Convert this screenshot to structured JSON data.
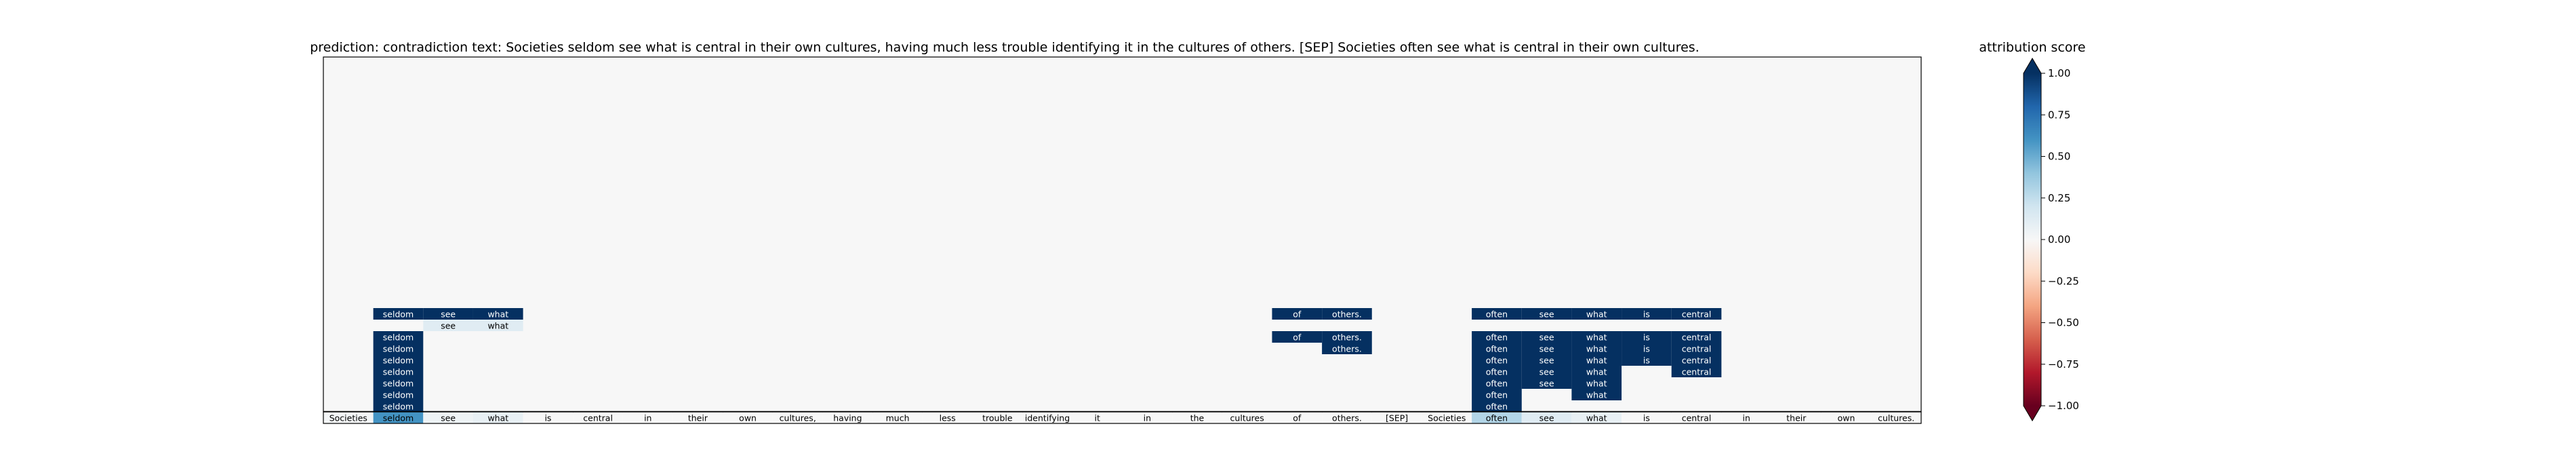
{
  "chart_data": {
    "type": "heatmap",
    "title": "prediction:  contradiction     text:  Societies seldom see what is central in their own cultures, having much less trouble identifying it in the cultures of others. [SEP] Societies often see what is central in their own cultures.",
    "tokens": [
      "Societies",
      "seldom",
      "see",
      "what",
      "is",
      "central",
      "in",
      "their",
      "own",
      "cultures,",
      "having",
      "much",
      "less",
      "trouble",
      "identifying",
      "it",
      "in",
      "the",
      "cultures",
      "of",
      "others.",
      "[SEP]",
      "Societies",
      "often",
      "see",
      "what",
      "is",
      "central",
      "in",
      "their",
      "own",
      "cultures."
    ],
    "token_scores": [
      0.02,
      0.6,
      0.05,
      0.08,
      0.0,
      0.0,
      0.0,
      0.0,
      0.0,
      0.0,
      0.0,
      0.0,
      0.0,
      0.0,
      0.0,
      0.0,
      0.0,
      0.0,
      0.0,
      0.0,
      0.0,
      0.0,
      0.0,
      0.3,
      0.12,
      0.08,
      0.0,
      0.0,
      0.0,
      0.0,
      0.0,
      0.0
    ],
    "rows": [
      {
        "row": 8,
        "cells": [
          [
            1,
            "seldom",
            1.0
          ],
          [
            2,
            "see",
            1.0
          ],
          [
            3,
            "what",
            1.0
          ],
          [
            19,
            "of",
            1.0
          ],
          [
            20,
            "others.",
            1.0
          ],
          [
            23,
            "often",
            1.0
          ],
          [
            24,
            "see",
            1.0
          ],
          [
            25,
            "what",
            1.0
          ],
          [
            26,
            "is",
            1.0
          ],
          [
            27,
            "central",
            1.0
          ]
        ]
      },
      {
        "row": 7,
        "cells": [
          [
            2,
            "see",
            0.12
          ],
          [
            3,
            "what",
            0.12
          ]
        ]
      },
      {
        "row": 6,
        "cells": [
          [
            1,
            "seldom",
            1.0
          ],
          [
            19,
            "of",
            1.0
          ],
          [
            20,
            "others.",
            1.0
          ],
          [
            23,
            "often",
            1.0
          ],
          [
            24,
            "see",
            1.0
          ],
          [
            25,
            "what",
            1.0
          ],
          [
            26,
            "is",
            1.0
          ],
          [
            27,
            "central",
            1.0
          ]
        ]
      },
      {
        "row": 5,
        "cells": [
          [
            1,
            "seldom",
            1.0
          ],
          [
            20,
            "others.",
            1.0
          ],
          [
            23,
            "often",
            1.0
          ],
          [
            24,
            "see",
            1.0
          ],
          [
            25,
            "what",
            1.0
          ],
          [
            26,
            "is",
            1.0
          ],
          [
            27,
            "central",
            1.0
          ]
        ]
      },
      {
        "row": 4,
        "cells": [
          [
            1,
            "seldom",
            1.0
          ],
          [
            23,
            "often",
            1.0
          ],
          [
            24,
            "see",
            1.0
          ],
          [
            25,
            "what",
            1.0
          ],
          [
            26,
            "is",
            1.0
          ],
          [
            27,
            "central",
            1.0
          ]
        ]
      },
      {
        "row": 3,
        "cells": [
          [
            1,
            "seldom",
            1.0
          ],
          [
            23,
            "often",
            1.0
          ],
          [
            24,
            "see",
            1.0
          ],
          [
            25,
            "what",
            1.0
          ],
          [
            27,
            "central",
            1.0
          ]
        ]
      },
      {
        "row": 2,
        "cells": [
          [
            1,
            "seldom",
            1.0
          ],
          [
            23,
            "often",
            1.0
          ],
          [
            24,
            "see",
            1.0
          ],
          [
            25,
            "what",
            1.0
          ]
        ]
      },
      {
        "row": 1,
        "cells": [
          [
            1,
            "seldom",
            1.0
          ],
          [
            23,
            "often",
            1.0
          ],
          [
            25,
            "what",
            1.0
          ]
        ]
      },
      {
        "row": 0,
        "cells": [
          [
            1,
            "seldom",
            1.0
          ],
          [
            23,
            "often",
            1.0
          ]
        ]
      }
    ],
    "colorbar": {
      "label": "attribution score",
      "range": [
        -1.0,
        1.0
      ],
      "ticks": [
        "1.00",
        "0.75",
        "0.50",
        "0.25",
        "0.00",
        "−0.25",
        "−0.50",
        "−0.75",
        "−1.00"
      ],
      "colormap": "RdBu",
      "extend": "both"
    },
    "colors": {
      "max_blue": "#053061",
      "min_red": "#67001f",
      "neutral": "#f7f7f7"
    }
  }
}
